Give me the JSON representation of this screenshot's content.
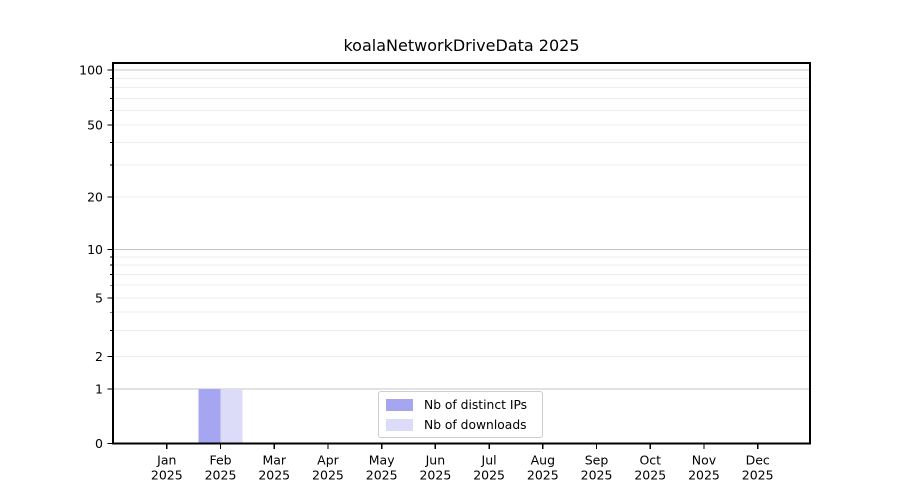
{
  "chart_data": {
    "type": "bar",
    "title": "koalaNetworkDriveData 2025",
    "categories": [
      "Jan",
      "Feb",
      "Mar",
      "Apr",
      "May",
      "Jun",
      "Jul",
      "Aug",
      "Sep",
      "Oct",
      "Nov",
      "Dec"
    ],
    "xtick_year": "2025",
    "series": [
      {
        "name": "Nb of distinct IPs",
        "color": "#a5a5f1",
        "values": [
          0,
          1,
          0,
          0,
          0,
          0,
          0,
          0,
          0,
          0,
          0,
          0
        ]
      },
      {
        "name": "Nb of downloads",
        "color": "#dcdcf8",
        "values": [
          0,
          1,
          0,
          0,
          0,
          0,
          0,
          0,
          0,
          0,
          0,
          0
        ]
      }
    ],
    "yscale": "symlog",
    "yticks": [
      0,
      1,
      2,
      5,
      10,
      20,
      50,
      100
    ],
    "yticks_minor": [
      3,
      4,
      6,
      7,
      8,
      9,
      30,
      40,
      60,
      70,
      80,
      90
    ],
    "ytick_major_grid": [
      1,
      10,
      100
    ],
    "ylim": [
      0,
      115
    ],
    "grid": true,
    "legend_position": "lower center"
  },
  "colors": {
    "major_grid": "#c4c4c4",
    "minor_grid": "#ececec",
    "axis": "#000000",
    "text": "#000000",
    "background": "#ffffff",
    "legend_border": "#cccccc"
  }
}
